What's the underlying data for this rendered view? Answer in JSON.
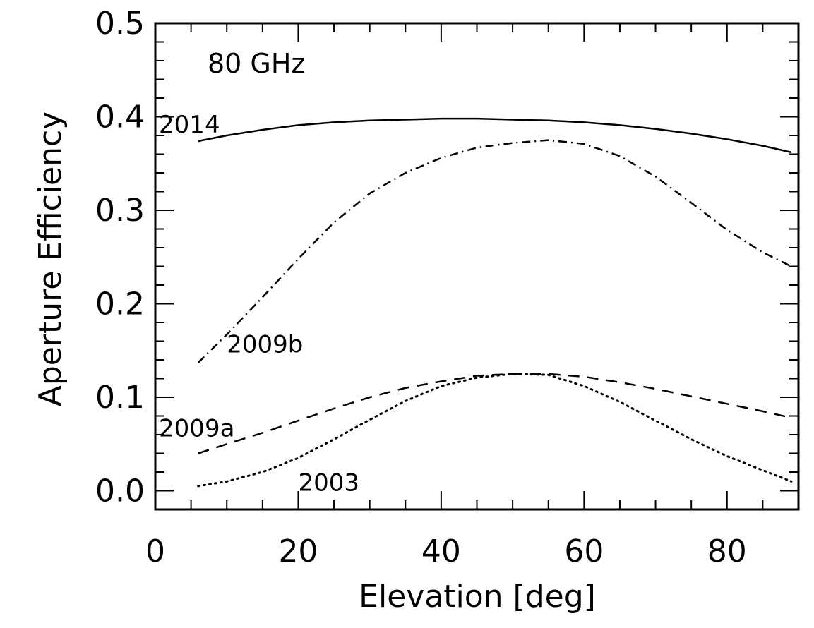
{
  "chart_data": {
    "type": "line",
    "annotation": "80 GHz",
    "xlabel": "Elevation [deg]",
    "ylabel": "Aperture Efficiency",
    "xlim": [
      0,
      90
    ],
    "ylim": [
      -0.02,
      0.5
    ],
    "x_ticks": [
      0,
      20,
      40,
      60,
      80
    ],
    "x_tick_labels": [
      "0",
      "20",
      "40",
      "60",
      "80"
    ],
    "y_ticks": [
      0.0,
      0.1,
      0.2,
      0.3,
      0.4,
      0.5
    ],
    "y_tick_labels": [
      "0.0",
      "0.1",
      "0.2",
      "0.3",
      "0.4",
      "0.5"
    ],
    "grid": false,
    "series": [
      {
        "name": "2014",
        "style": "solid",
        "label_position": [
          0.5,
          0.383
        ],
        "x": [
          6,
          10,
          15,
          20,
          25,
          30,
          35,
          40,
          45,
          50,
          55,
          60,
          65,
          70,
          75,
          80,
          85,
          89
        ],
        "y": [
          0.374,
          0.38,
          0.386,
          0.391,
          0.394,
          0.396,
          0.397,
          0.398,
          0.398,
          0.397,
          0.396,
          0.394,
          0.391,
          0.387,
          0.382,
          0.376,
          0.369,
          0.362
        ]
      },
      {
        "name": "2009b",
        "style": "dashdot",
        "label_position": [
          10,
          0.148
        ],
        "x": [
          6,
          10,
          15,
          20,
          25,
          30,
          35,
          40,
          45,
          50,
          55,
          60,
          65,
          70,
          75,
          80,
          85,
          89
        ],
        "y": [
          0.137,
          0.167,
          0.207,
          0.248,
          0.287,
          0.318,
          0.34,
          0.356,
          0.367,
          0.372,
          0.375,
          0.371,
          0.358,
          0.336,
          0.308,
          0.279,
          0.255,
          0.24
        ]
      },
      {
        "name": "2009a",
        "style": "dashed",
        "label_position": [
          0.5,
          0.058
        ],
        "x": [
          6,
          10,
          15,
          20,
          25,
          30,
          35,
          40,
          45,
          50,
          55,
          60,
          65,
          70,
          75,
          80,
          85,
          89
        ],
        "y": [
          0.04,
          0.05,
          0.062,
          0.075,
          0.088,
          0.1,
          0.11,
          0.117,
          0.123,
          0.125,
          0.125,
          0.122,
          0.116,
          0.109,
          0.101,
          0.093,
          0.085,
          0.078
        ]
      },
      {
        "name": "2003",
        "style": "dotted",
        "label_position": [
          20,
          0.0
        ],
        "x": [
          6,
          10,
          15,
          20,
          25,
          30,
          35,
          40,
          45,
          50,
          55,
          60,
          65,
          70,
          75,
          80,
          85,
          89
        ],
        "y": [
          0.005,
          0.01,
          0.02,
          0.035,
          0.055,
          0.076,
          0.096,
          0.112,
          0.121,
          0.125,
          0.124,
          0.112,
          0.095,
          0.075,
          0.055,
          0.037,
          0.022,
          0.01
        ]
      }
    ]
  }
}
